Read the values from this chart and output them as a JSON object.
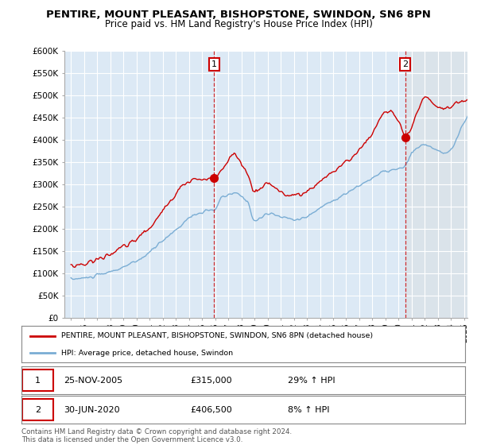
{
  "title": "PENTIRE, MOUNT PLEASANT, BISHOPSTONE, SWINDON, SN6 8PN",
  "subtitle": "Price paid vs. HM Land Registry's House Price Index (HPI)",
  "ylim": [
    0,
    600000
  ],
  "yticks": [
    0,
    50000,
    100000,
    150000,
    200000,
    250000,
    300000,
    350000,
    400000,
    450000,
    500000,
    550000,
    600000
  ],
  "ytick_labels": [
    "£0",
    "£50K",
    "£100K",
    "£150K",
    "£200K",
    "£250K",
    "£300K",
    "£350K",
    "£400K",
    "£450K",
    "£500K",
    "£550K",
    "£600K"
  ],
  "background_color": "#ffffff",
  "plot_bg_color": "#dce9f5",
  "grid_color": "#ffffff",
  "red_color": "#cc0000",
  "blue_color": "#7aadd4",
  "shade_color": "#e8e8e8",
  "purchase1_year": 2005.92,
  "purchase1_price": 315000,
  "purchase2_year": 2020.5,
  "purchase2_price": 406500,
  "legend_line1": "PENTIRE, MOUNT PLEASANT, BISHOPSTONE, SWINDON, SN6 8PN (detached house)",
  "legend_line2": "HPI: Average price, detached house, Swindon",
  "table_row1_num": "1",
  "table_row1_date": "25-NOV-2005",
  "table_row1_price": "£315,000",
  "table_row1_hpi": "29% ↑ HPI",
  "table_row2_num": "2",
  "table_row2_date": "30-JUN-2020",
  "table_row2_price": "£406,500",
  "table_row2_hpi": "8% ↑ HPI",
  "footnote": "Contains HM Land Registry data © Crown copyright and database right 2024.\nThis data is licensed under the Open Government Licence v3.0.",
  "title_fontsize": 9.5,
  "subtitle_fontsize": 8.5,
  "xmin": 1995.0,
  "xmax": 2025.25
}
